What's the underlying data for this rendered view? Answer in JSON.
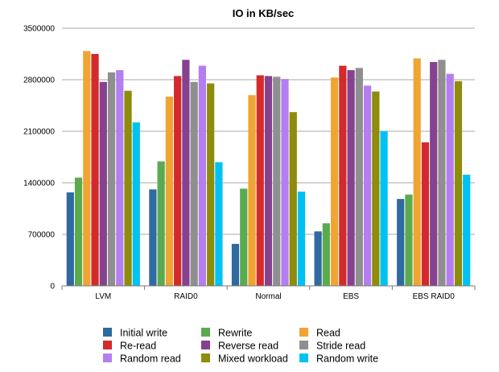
{
  "chart_data": {
    "type": "bar",
    "title": "IO in KB/sec",
    "xlabel": "",
    "ylabel": "",
    "ylim": [
      0,
      3500000
    ],
    "yticks": [
      0,
      700000,
      1400000,
      2100000,
      2800000,
      3500000
    ],
    "grid": true,
    "legend_position": "bottom",
    "categories": [
      "LVM",
      "RAID0",
      "Normal",
      "EBS",
      "EBS RAID0"
    ],
    "series": [
      {
        "name": "Initial write",
        "color": "#2f6aa0",
        "values": [
          1270000,
          1310000,
          570000,
          740000,
          1180000
        ]
      },
      {
        "name": "Rewrite",
        "color": "#5aab4f",
        "values": [
          1470000,
          1690000,
          1320000,
          850000,
          1240000
        ]
      },
      {
        "name": "Read",
        "color": "#f0a431",
        "values": [
          3190000,
          2570000,
          2590000,
          2830000,
          3090000
        ]
      },
      {
        "name": "Re-read",
        "color": "#d42a2b",
        "values": [
          3150000,
          2850000,
          2860000,
          2990000,
          1950000
        ]
      },
      {
        "name": "Reverse read",
        "color": "#86418f",
        "values": [
          2770000,
          3070000,
          2850000,
          2930000,
          3040000
        ]
      },
      {
        "name": "Stride read",
        "color": "#8f8f8f",
        "values": [
          2900000,
          2770000,
          2840000,
          2960000,
          3070000
        ]
      },
      {
        "name": "Random read",
        "color": "#b47ef0",
        "values": [
          2930000,
          2990000,
          2810000,
          2720000,
          2880000
        ]
      },
      {
        "name": "Mixed workload",
        "color": "#8e8c0c",
        "values": [
          2650000,
          2750000,
          2360000,
          2640000,
          2780000
        ]
      },
      {
        "name": "Random write",
        "color": "#00c2f2",
        "values": [
          2220000,
          1680000,
          1280000,
          2100000,
          1510000
        ]
      }
    ]
  }
}
